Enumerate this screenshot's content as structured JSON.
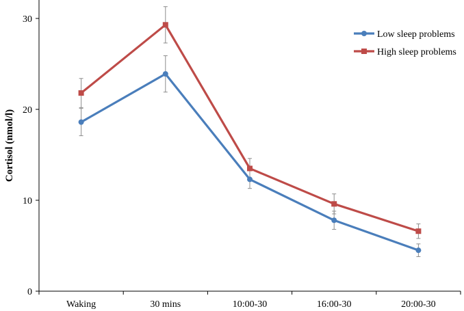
{
  "chart_data": {
    "type": "line",
    "title": "",
    "xlabel": "",
    "ylabel": "Cortisol (nmol/l)",
    "categories": [
      "Waking",
      "30 mins",
      "10:00-30",
      "16:00-30",
      "20:00-30"
    ],
    "ylim": [
      0,
      30
    ],
    "yticks": [
      0,
      10,
      20,
      30
    ],
    "grid": false,
    "legend_position": "top-right",
    "series": [
      {
        "name": "Low sleep problems",
        "color": "#4a7ebb",
        "marker": "circle",
        "values": [
          18.6,
          23.9,
          12.3,
          7.8,
          4.5
        ],
        "error": [
          1.5,
          2.0,
          1.0,
          1.0,
          0.7
        ]
      },
      {
        "name": "High sleep problems",
        "color": "#be4b48",
        "marker": "square",
        "values": [
          21.8,
          29.3,
          13.5,
          9.6,
          6.6
        ],
        "error": [
          1.6,
          2.0,
          1.1,
          1.1,
          0.8
        ]
      }
    ]
  }
}
